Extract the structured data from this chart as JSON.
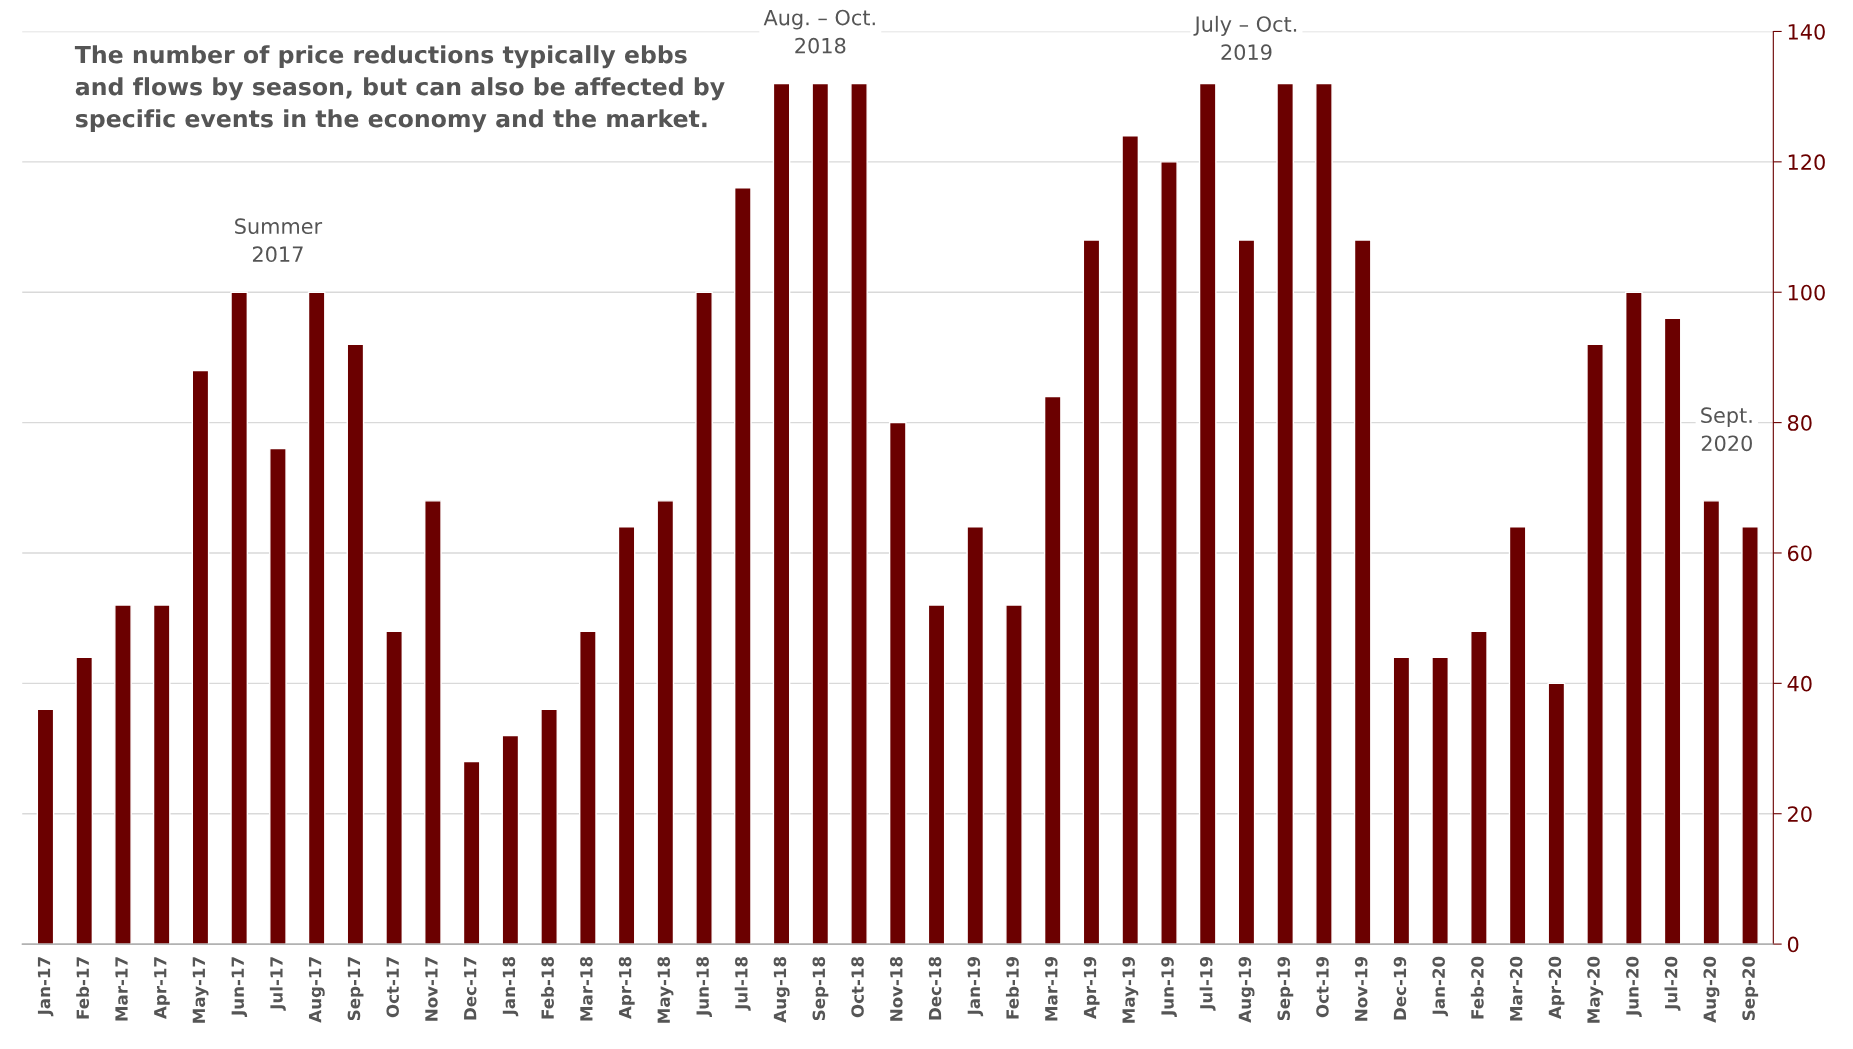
{
  "chart_data": {
    "type": "bar",
    "categories": [
      "Jan-17",
      "Feb-17",
      "Mar-17",
      "Apr-17",
      "May-17",
      "Jun-17",
      "Jul-17",
      "Aug-17",
      "Sep-17",
      "Oct-17",
      "Nov-17",
      "Dec-17",
      "Jan-18",
      "Feb-18",
      "Mar-18",
      "Apr-18",
      "May-18",
      "Jun-18",
      "Jul-18",
      "Aug-18",
      "Sep-18",
      "Oct-18",
      "Nov-18",
      "Dec-18",
      "Jan-19",
      "Feb-19",
      "Mar-19",
      "Apr-19",
      "May-19",
      "Jun-19",
      "Jul-19",
      "Aug-19",
      "Sep-19",
      "Oct-19",
      "Nov-19",
      "Dec-19",
      "Jan-20",
      "Feb-20",
      "Mar-20",
      "Apr-20",
      "May-20",
      "Jun-20",
      "Jul-20",
      "Aug-20",
      "Sep-20"
    ],
    "values": [
      36,
      44,
      52,
      52,
      88,
      100,
      76,
      100,
      92,
      48,
      68,
      28,
      32,
      36,
      48,
      64,
      68,
      100,
      116,
      132,
      132,
      132,
      80,
      52,
      64,
      52,
      84,
      108,
      124,
      120,
      132,
      108,
      132,
      132,
      108,
      44,
      44,
      48,
      64,
      40,
      92,
      100,
      96,
      68,
      64
    ],
    "color": "#6b0000",
    "ylim": [
      0,
      140
    ],
    "yticks": [
      0,
      20,
      40,
      60,
      80,
      100,
      120,
      140
    ],
    "grid": "y",
    "annotations": [
      "The number of price reductions typically ebbs\nand flows by season, but can also be affected by\nspecific events in the economy and the market.",
      "Summer\n2017",
      "Aug. – Oct.\n2018",
      "July – Oct.\n2019",
      "Sept.\n2020"
    ]
  }
}
